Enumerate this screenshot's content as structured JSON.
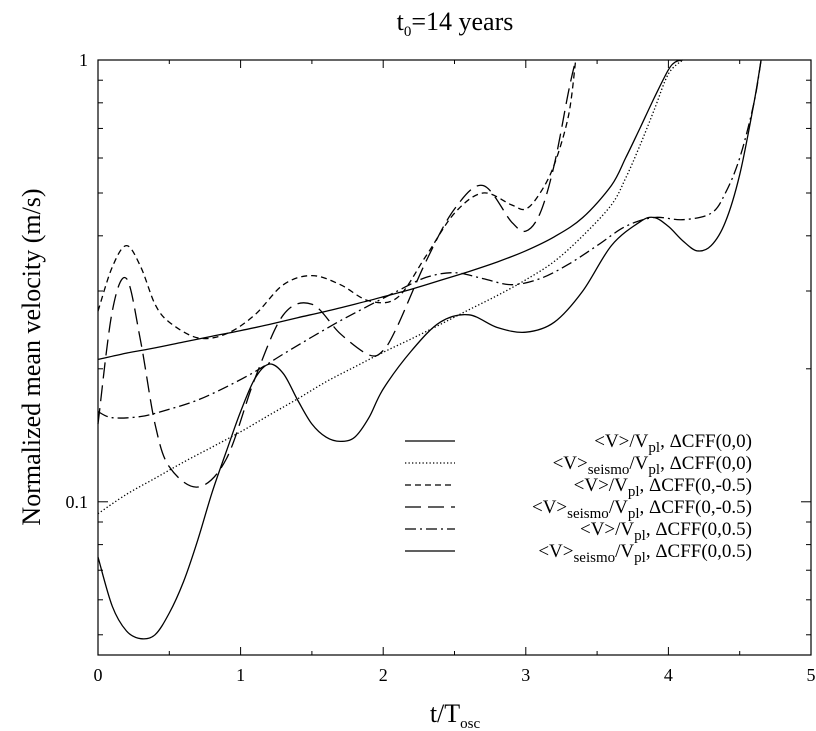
{
  "chart_data": {
    "type": "line",
    "title": {
      "main": "t",
      "sub": "0",
      "rest": "=14 years"
    },
    "xlabel": {
      "main": "t/T",
      "sub": "osc"
    },
    "ylabel": "Normalized mean velocity  (m/s)",
    "xlim": [
      0,
      5
    ],
    "ylim": [
      0.045,
      1
    ],
    "yscale": "log",
    "xticks": [
      "0",
      "1",
      "2",
      "3",
      "4",
      "5"
    ],
    "yticks": [
      "0.1",
      "1"
    ],
    "legend_placement": "lower-right",
    "series": [
      {
        "legend": {
          "a": "<V>/V",
          "asub": "pl",
          "b": ", ΔCFF(0,0)"
        },
        "dash": "solid",
        "x": [
          0,
          0.2,
          0.4,
          0.6,
          0.8,
          1.0,
          1.2,
          1.4,
          1.6,
          1.8,
          2.0,
          2.2,
          2.4,
          2.6,
          2.8,
          3.0,
          3.2,
          3.4,
          3.6,
          3.7,
          3.8,
          3.9,
          4.0,
          4.05,
          4.1
        ],
        "y": [
          0.21,
          0.217,
          0.223,
          0.23,
          0.237,
          0.244,
          0.252,
          0.261,
          0.27,
          0.28,
          0.291,
          0.303,
          0.317,
          0.332,
          0.349,
          0.37,
          0.398,
          0.44,
          0.52,
          0.6,
          0.7,
          0.82,
          0.95,
          0.99,
          1.0
        ]
      },
      {
        "legend": {
          "a": "<V>",
          "asub": "seismo",
          "b": "/V",
          "bsub": "pl",
          "c": ", ΔCFF(0,0)"
        },
        "dash": "dotted",
        "x": [
          0,
          0.2,
          0.4,
          0.6,
          0.8,
          1.0,
          1.2,
          1.4,
          1.6,
          1.8,
          2.0,
          2.2,
          2.4,
          2.6,
          2.8,
          3.0,
          3.2,
          3.4,
          3.6,
          3.7,
          3.8,
          3.9,
          4.0,
          4.1
        ],
        "y": [
          0.094,
          0.104,
          0.113,
          0.123,
          0.133,
          0.144,
          0.157,
          0.171,
          0.187,
          0.202,
          0.218,
          0.234,
          0.252,
          0.272,
          0.293,
          0.318,
          0.35,
          0.4,
          0.47,
          0.54,
          0.64,
          0.77,
          0.93,
          1.0
        ]
      },
      {
        "legend": {
          "a": "<V>/V",
          "asub": "pl",
          "b": ", ΔCFF(0,-0.5)"
        },
        "dash": "short-dash",
        "x": [
          0,
          0.1,
          0.2,
          0.3,
          0.4,
          0.5,
          0.7,
          0.9,
          1.1,
          1.3,
          1.5,
          1.7,
          1.9,
          2.1,
          2.3,
          2.5,
          2.7,
          2.9,
          3.0,
          3.1,
          3.2,
          3.3,
          3.35
        ],
        "y": [
          0.27,
          0.34,
          0.38,
          0.34,
          0.28,
          0.255,
          0.235,
          0.24,
          0.265,
          0.31,
          0.325,
          0.31,
          0.285,
          0.29,
          0.36,
          0.45,
          0.5,
          0.47,
          0.46,
          0.5,
          0.58,
          0.75,
          1.0
        ]
      },
      {
        "legend": {
          "a": "<V>",
          "asub": "seismo",
          "b": "/V",
          "bsub": "pl",
          "c": ", ΔCFF(0,-0.5)"
        },
        "dash": "long-dash",
        "x": [
          0,
          0.1,
          0.2,
          0.3,
          0.4,
          0.5,
          0.7,
          0.9,
          1.1,
          1.3,
          1.5,
          1.7,
          1.9,
          2.0,
          2.1,
          2.3,
          2.5,
          2.7,
          2.9,
          3.0,
          3.1,
          3.2,
          3.3,
          3.35
        ],
        "y": [
          0.15,
          0.27,
          0.32,
          0.23,
          0.15,
          0.12,
          0.108,
          0.125,
          0.19,
          0.265,
          0.28,
          0.24,
          0.215,
          0.22,
          0.25,
          0.35,
          0.46,
          0.52,
          0.43,
          0.41,
          0.45,
          0.58,
          0.85,
          1.0
        ]
      },
      {
        "legend": {
          "a": "<V>/V",
          "asub": "pl",
          "b": ", ΔCFF(0,0.5)"
        },
        "dash": "dash-dot",
        "x": [
          0,
          0.1,
          0.3,
          0.5,
          0.7,
          0.9,
          1.1,
          1.3,
          1.5,
          1.7,
          1.9,
          2.1,
          2.3,
          2.5,
          2.7,
          2.9,
          3.1,
          3.3,
          3.5,
          3.7,
          3.9,
          4.1,
          4.3,
          4.4,
          4.5,
          4.6,
          4.65
        ],
        "y": [
          0.16,
          0.155,
          0.156,
          0.162,
          0.17,
          0.182,
          0.197,
          0.216,
          0.236,
          0.257,
          0.278,
          0.3,
          0.322,
          0.33,
          0.32,
          0.31,
          0.32,
          0.345,
          0.38,
          0.42,
          0.44,
          0.435,
          0.45,
          0.5,
          0.6,
          0.8,
          1.0
        ]
      },
      {
        "legend": {
          "a": "<V>",
          "asub": "seismo",
          "b": "/V",
          "bsub": "pl",
          "c": ", ΔCFF(0,0.5)"
        },
        "dash": "solid",
        "x": [
          0,
          0.1,
          0.2,
          0.3,
          0.4,
          0.5,
          0.6,
          0.7,
          0.8,
          0.9,
          1.0,
          1.1,
          1.2,
          1.3,
          1.4,
          1.5,
          1.6,
          1.7,
          1.8,
          1.9,
          2.0,
          2.2,
          2.4,
          2.6,
          2.8,
          3.0,
          3.2,
          3.4,
          3.6,
          3.8,
          3.9,
          4.0,
          4.1,
          4.2,
          4.3,
          4.4,
          4.5,
          4.6,
          4.65
        ],
        "y": [
          0.075,
          0.058,
          0.051,
          0.049,
          0.05,
          0.056,
          0.066,
          0.082,
          0.105,
          0.13,
          0.16,
          0.19,
          0.205,
          0.195,
          0.17,
          0.15,
          0.14,
          0.137,
          0.14,
          0.155,
          0.18,
          0.22,
          0.255,
          0.265,
          0.248,
          0.242,
          0.255,
          0.3,
          0.38,
          0.43,
          0.44,
          0.42,
          0.39,
          0.37,
          0.38,
          0.43,
          0.55,
          0.8,
          1.0
        ]
      }
    ]
  }
}
